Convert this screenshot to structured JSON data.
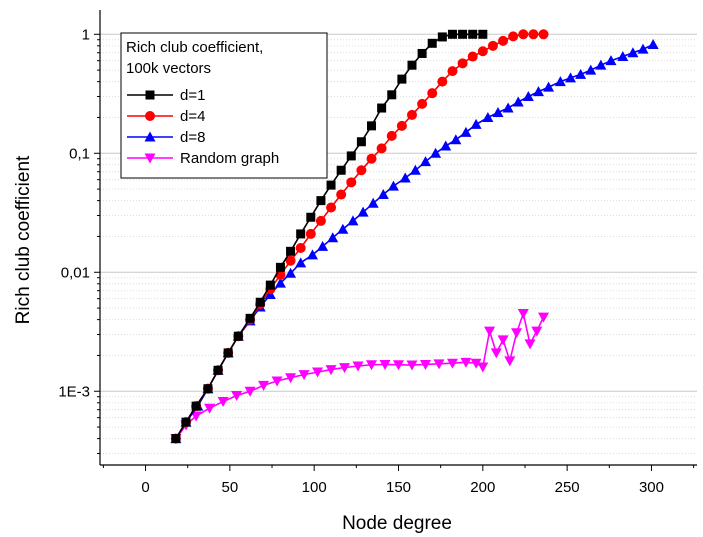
{
  "chart_data": {
    "type": "line",
    "xlabel": "Node degree",
    "ylabel": "Rich club coefficient",
    "xlim": [
      -27,
      327
    ],
    "ylim": [
      0.00024,
      1.6
    ],
    "yscale": "log",
    "x_ticks": [
      0,
      50,
      100,
      150,
      200,
      250,
      300
    ],
    "x_tick_labels": [
      "0",
      "50",
      "100",
      "150",
      "200",
      "250",
      "300"
    ],
    "y_ticks": [
      0.001,
      0.01,
      0.1,
      1
    ],
    "y_tick_labels": [
      "1E-3",
      "0,01",
      "0,1",
      "1"
    ],
    "legend": {
      "title_lines": [
        "Rich club coefficient,",
        "100k vectors"
      ],
      "placement": "top-left"
    },
    "series": [
      {
        "name": "d=1",
        "color": "#000000",
        "marker": "square",
        "x": [
          18,
          24,
          30,
          37,
          43,
          49,
          55,
          62,
          68,
          74,
          80,
          86,
          92,
          98,
          104,
          110,
          116,
          122,
          128,
          134,
          140,
          146,
          152,
          158,
          164,
          170,
          176,
          182,
          188,
          194,
          200
        ],
        "y": [
          0.0004,
          0.00055,
          0.00075,
          0.00105,
          0.0015,
          0.0021,
          0.0029,
          0.0041,
          0.0056,
          0.0078,
          0.011,
          0.015,
          0.021,
          0.029,
          0.04,
          0.054,
          0.072,
          0.095,
          0.125,
          0.17,
          0.24,
          0.31,
          0.42,
          0.55,
          0.69,
          0.84,
          0.95,
          1.0,
          1.0,
          1.0,
          1.0
        ]
      },
      {
        "name": "d=4",
        "color": "#ff0000",
        "marker": "circle",
        "x": [
          18,
          24,
          30,
          37,
          43,
          49,
          55,
          62,
          68,
          74,
          80,
          86,
          92,
          98,
          104,
          110,
          116,
          122,
          128,
          134,
          140,
          146,
          152,
          158,
          164,
          170,
          176,
          182,
          188,
          194,
          200,
          206,
          212,
          218,
          224,
          230,
          236
        ],
        "y": [
          0.0004,
          0.00055,
          0.00075,
          0.00105,
          0.0015,
          0.0021,
          0.0029,
          0.004,
          0.0054,
          0.0072,
          0.0095,
          0.0125,
          0.016,
          0.021,
          0.027,
          0.035,
          0.045,
          0.057,
          0.072,
          0.09,
          0.11,
          0.14,
          0.17,
          0.21,
          0.26,
          0.32,
          0.4,
          0.49,
          0.57,
          0.65,
          0.72,
          0.8,
          0.88,
          0.96,
          1.0,
          1.0,
          1.0
        ]
      },
      {
        "name": "d=8",
        "color": "#0000ff",
        "marker": "triangle-up",
        "x": [
          18,
          24,
          31,
          37,
          43,
          49,
          55,
          62,
          68,
          74,
          80,
          86,
          92,
          99,
          105,
          111,
          117,
          123,
          129,
          135,
          141,
          147,
          154,
          160,
          166,
          172,
          178,
          184,
          190,
          196,
          203,
          209,
          215,
          221,
          227,
          233,
          239,
          246,
          252,
          258,
          264,
          270,
          276,
          283,
          289,
          295,
          301
        ],
        "y": [
          0.0004,
          0.00055,
          0.00075,
          0.00105,
          0.0015,
          0.0021,
          0.0029,
          0.0039,
          0.0051,
          0.0065,
          0.0081,
          0.0098,
          0.012,
          0.014,
          0.0165,
          0.0195,
          0.023,
          0.027,
          0.032,
          0.038,
          0.045,
          0.053,
          0.062,
          0.072,
          0.085,
          0.1,
          0.115,
          0.13,
          0.15,
          0.175,
          0.2,
          0.22,
          0.24,
          0.27,
          0.3,
          0.33,
          0.36,
          0.4,
          0.43,
          0.46,
          0.5,
          0.55,
          0.6,
          0.65,
          0.7,
          0.75,
          0.82
        ]
      },
      {
        "name": "Random graph",
        "color": "#ff00ff",
        "marker": "triangle-down",
        "x": [
          18,
          24,
          30,
          38,
          46,
          54,
          62,
          70,
          78,
          86,
          94,
          102,
          110,
          118,
          126,
          134,
          142,
          150,
          158,
          166,
          174,
          182,
          190,
          196,
          200,
          204,
          208,
          212,
          216,
          220,
          224,
          228,
          232,
          236
        ],
        "y": [
          0.0004,
          0.00052,
          0.00062,
          0.00072,
          0.00082,
          0.00092,
          0.001,
          0.00112,
          0.00122,
          0.0013,
          0.00138,
          0.00145,
          0.00152,
          0.00158,
          0.00163,
          0.00167,
          0.00168,
          0.00167,
          0.00166,
          0.00168,
          0.0017,
          0.00172,
          0.00175,
          0.00172,
          0.0016,
          0.0032,
          0.0021,
          0.0027,
          0.0018,
          0.0031,
          0.0045,
          0.0025,
          0.0032,
          0.0042
        ]
      }
    ]
  }
}
